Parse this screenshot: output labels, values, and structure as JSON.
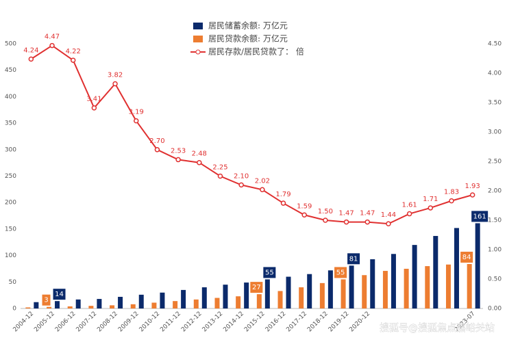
{
  "chart_data": {
    "type": "bar_line",
    "categories": [
      "2004-12",
      "2005-12",
      "2006-12",
      "2007-12",
      "2008-12",
      "2009-12",
      "2010-12",
      "2011-12",
      "2012-12",
      "2013-12",
      "2014-12",
      "2015-12",
      "2016-12",
      "2017-12",
      "2018-12",
      "2019-12",
      "2020-12",
      null,
      null,
      null,
      null,
      "2023-07"
    ],
    "series": [
      {
        "name": "居民储蓄余额: 万亿元",
        "type": "bar",
        "color": "#0b2a6b",
        "values": [
          12,
          14,
          17,
          18,
          22,
          26,
          30,
          35,
          40,
          45,
          49,
          55,
          60,
          65,
          72,
          81,
          93,
          103,
          120,
          137,
          152,
          161
        ],
        "value_labels": [
          null,
          "14",
          null,
          null,
          null,
          null,
          null,
          null,
          null,
          null,
          null,
          "55",
          null,
          null,
          null,
          "81",
          null,
          null,
          null,
          null,
          null,
          "161"
        ]
      },
      {
        "name": "居民贷款余额: 万亿元",
        "type": "bar",
        "color": "#ed7d31",
        "values": [
          2,
          3,
          4,
          5,
          6,
          8,
          11,
          14,
          17,
          20,
          23,
          27,
          33,
          40,
          48,
          55,
          63,
          71,
          75,
          80,
          83,
          84
        ],
        "value_labels": [
          null,
          "3",
          null,
          null,
          null,
          null,
          null,
          null,
          null,
          null,
          null,
          "27",
          null,
          null,
          null,
          "55",
          null,
          null,
          null,
          null,
          null,
          "84"
        ]
      },
      {
        "name": "居民存款/居民贷款了： 倍",
        "type": "line",
        "axis": "y2",
        "color": "#e03030",
        "values": [
          4.24,
          4.47,
          4.22,
          3.41,
          3.82,
          3.19,
          2.7,
          2.53,
          2.48,
          2.25,
          2.1,
          2.02,
          1.79,
          1.59,
          1.5,
          1.47,
          1.47,
          1.44,
          1.61,
          1.71,
          1.83,
          1.93
        ],
        "value_labels": [
          "4.24",
          "4.47",
          "4.22",
          "3.41",
          "3.82",
          "3.19",
          "2.70",
          "2.53",
          "2.48",
          "2.25",
          "2.10",
          "2.02",
          "1.79",
          "1.59",
          "1.50",
          "1.47",
          "1.47",
          "1.44",
          "1.61",
          "1.71",
          "1.83",
          "1.93"
        ]
      }
    ],
    "ylim": [
      0,
      500
    ],
    "yticks": [
      0,
      50,
      100,
      150,
      200,
      250,
      300,
      350,
      400,
      450,
      500
    ],
    "y2lim": [
      0,
      4.5
    ],
    "y2ticks": [
      {
        "value": 0,
        "label": "0.00"
      },
      {
        "value": 0.5,
        "label": "0.50"
      },
      {
        "value": 1,
        "label": "1.00"
      },
      {
        "value": 1.5,
        "label": "1.50"
      },
      {
        "value": 2,
        "label": "2.00"
      },
      {
        "value": 2.5,
        "label": "2.50"
      },
      {
        "value": 3,
        "label": "3.00"
      },
      {
        "value": 3.5,
        "label": "3.50"
      },
      {
        "value": 4,
        "label": "4.00"
      },
      {
        "value": 4.5,
        "label": "4.50"
      }
    ],
    "watermark": "搜狐号@搜狐焦点嘉峪关站"
  }
}
